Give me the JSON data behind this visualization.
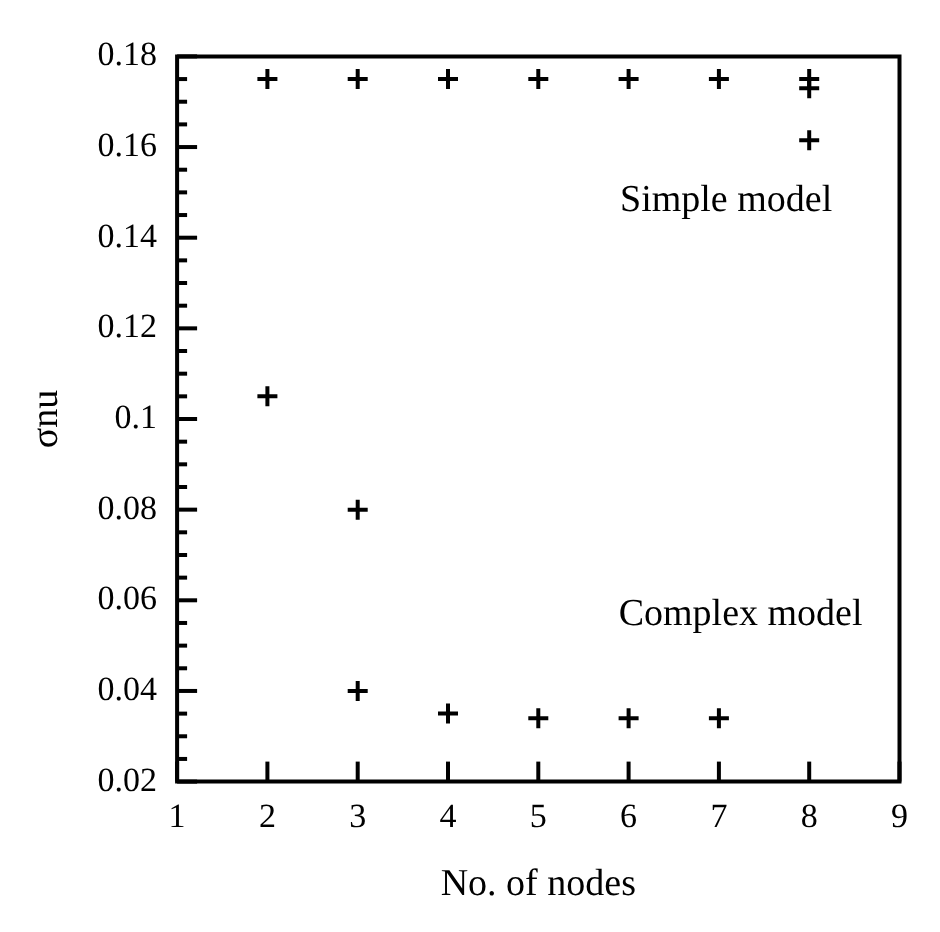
{
  "chart_data": {
    "type": "scatter",
    "xlabel": "No. of nodes",
    "ylabel": "σnu",
    "x": [
      2,
      3,
      4,
      5,
      6,
      7,
      8,
      8,
      8,
      2,
      3,
      3,
      4,
      5,
      6,
      7
    ],
    "values": [
      0.175,
      0.175,
      0.175,
      0.175,
      0.175,
      0.175,
      0.175,
      0.173,
      0.1615,
      0.105,
      0.08,
      0.04,
      0.035,
      0.034,
      0.034,
      0.034
    ],
    "color": "#000000",
    "marker": "cross",
    "xlim": [
      1,
      9
    ],
    "xticks": [
      1,
      2,
      3,
      4,
      5,
      6,
      7,
      8,
      9
    ],
    "ylim": [
      0.02,
      0.18
    ],
    "yticks": [
      {
        "value": 0.02,
        "label": "0.02"
      },
      {
        "value": 0.025,
        "label": null
      },
      {
        "value": 0.03,
        "label": null
      },
      {
        "value": 0.035,
        "label": null
      },
      {
        "value": 0.04,
        "label": "0.04"
      },
      {
        "value": 0.045,
        "label": null
      },
      {
        "value": 0.05,
        "label": null
      },
      {
        "value": 0.055,
        "label": null
      },
      {
        "value": 0.06,
        "label": "0.06"
      },
      {
        "value": 0.065,
        "label": null
      },
      {
        "value": 0.07,
        "label": null
      },
      {
        "value": 0.075,
        "label": null
      },
      {
        "value": 0.08,
        "label": "0.08"
      },
      {
        "value": 0.085,
        "label": null
      },
      {
        "value": 0.09,
        "label": null
      },
      {
        "value": 0.095,
        "label": null
      },
      {
        "value": 0.1,
        "label": "0.1"
      },
      {
        "value": 0.105,
        "label": null
      },
      {
        "value": 0.11,
        "label": null
      },
      {
        "value": 0.115,
        "label": null
      },
      {
        "value": 0.12,
        "label": "0.12"
      },
      {
        "value": 0.125,
        "label": null
      },
      {
        "value": 0.13,
        "label": null
      },
      {
        "value": 0.135,
        "label": null
      },
      {
        "value": 0.14,
        "label": "0.14"
      },
      {
        "value": 0.145,
        "label": null
      },
      {
        "value": 0.15,
        "label": null
      },
      {
        "value": 0.155,
        "label": null
      },
      {
        "value": 0.16,
        "label": "0.16"
      },
      {
        "value": 0.165,
        "label": null
      },
      {
        "value": 0.17,
        "label": null
      },
      {
        "value": 0.175,
        "label": null
      },
      {
        "value": 0.18,
        "label": "0.18"
      }
    ],
    "annotations": [
      "Simple model",
      "Complex model"
    ],
    "grid": false,
    "legend": false
  }
}
